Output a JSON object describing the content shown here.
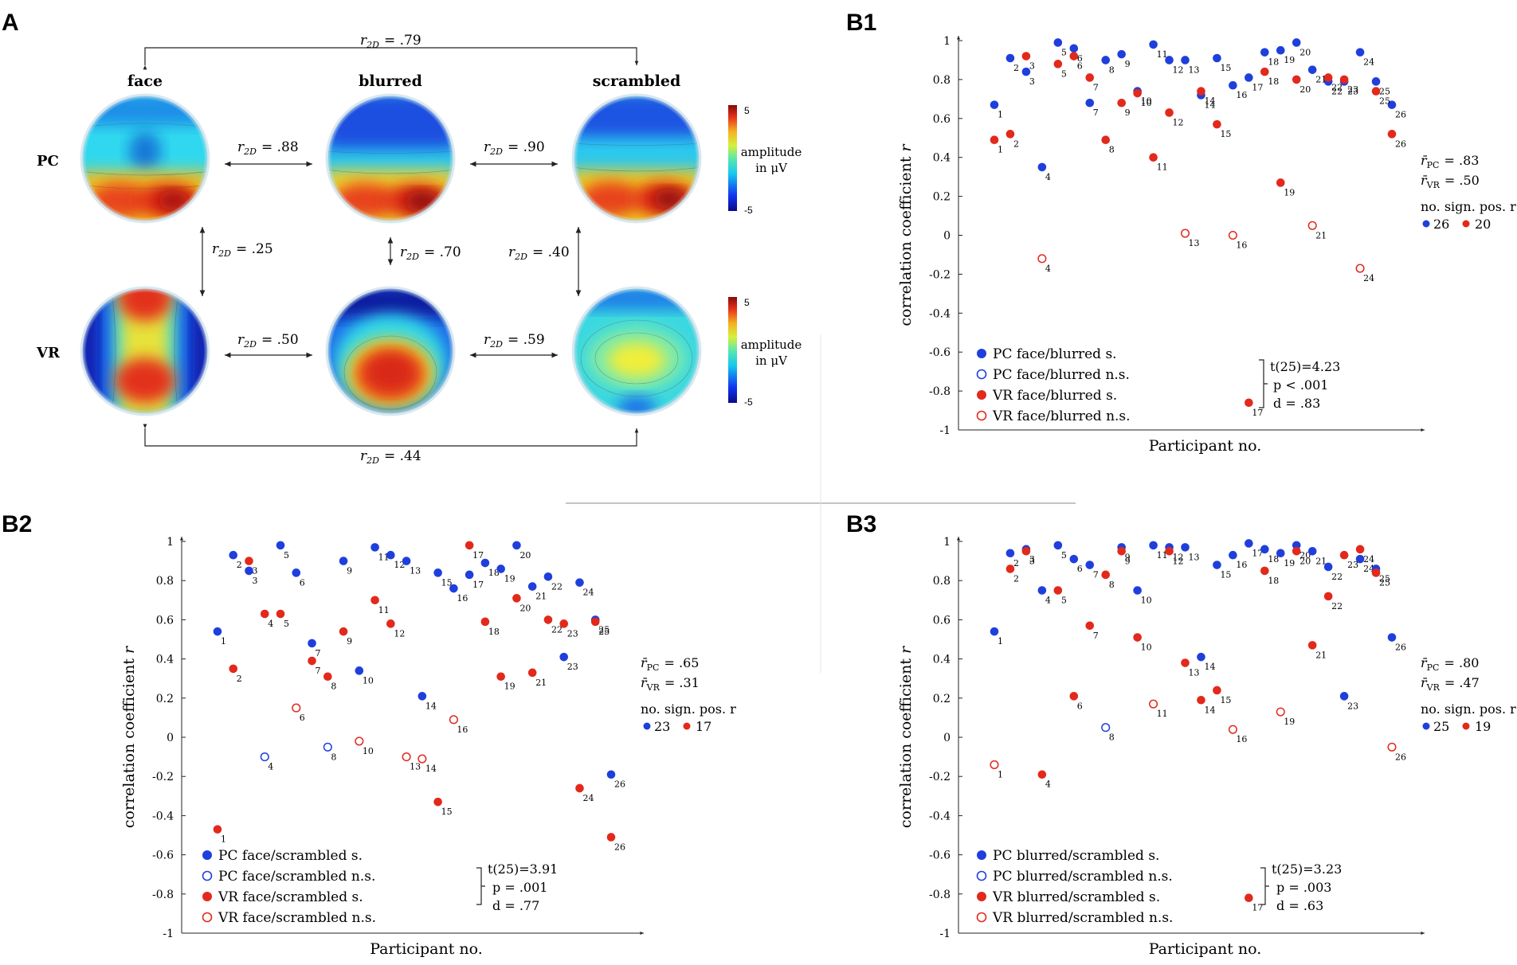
{
  "panels": {
    "a": {
      "label": "A",
      "col_labels": [
        "face",
        "blurred",
        "scrambled"
      ],
      "row_labels": [
        "PC",
        "VR"
      ],
      "r_symbol": "r",
      "r_sub": "2D",
      "correlations": {
        "pc_face_blurred": "= .88",
        "pc_blurred_scrambled": "= .90",
        "vr_face_blurred": "= .50",
        "vr_blurred_scrambled": "= .59",
        "face_pc_vr": "= .25",
        "blurred_pc_vr": "= .70",
        "scrambled_pc_vr": "= .40",
        "top_face_scrambled": "= .79",
        "bottom_face_scrambled": "= .44"
      },
      "colorbar": {
        "max": "5",
        "min": "-5",
        "label_line1": "amplitude",
        "label_line2": "in μV"
      }
    },
    "b1": {
      "label": "B1",
      "legend": [
        "PC face/blurred s.",
        "PC face/blurred n.s.",
        "VR face/blurred s.",
        "VR face/blurred n.s."
      ],
      "stats": {
        "t": "t(25)=4.23",
        "p": "p < .001",
        "d": "d = .83"
      },
      "summary": {
        "r_pc": "= .83",
        "r_vr": "= .50",
        "count_title": "no. sign. pos. r",
        "pc_count": "26",
        "vr_count": "20"
      }
    },
    "b2": {
      "label": "B2",
      "legend": [
        "PC face/scrambled s.",
        "PC face/scrambled n.s.",
        "VR face/scrambled s.",
        "VR face/scrambled n.s."
      ],
      "stats": {
        "t": "t(25)=3.91",
        "p": "p = .001",
        "d": "d = .77"
      },
      "summary": {
        "r_pc": "= .65",
        "r_vr": "= .31",
        "count_title": "no. sign. pos. r",
        "pc_count": "23",
        "vr_count": "17"
      }
    },
    "b3": {
      "label": "B3",
      "legend": [
        "PC blurred/scrambled s.",
        "PC blurred/scrambled n.s.",
        "VR blurred/scrambled s.",
        "VR blurred/scrambled n.s."
      ],
      "stats": {
        "t": "t(25)=3.23",
        "p": "p = .003",
        "d": "d = .63"
      },
      "summary": {
        "r_pc": "= .80",
        "r_vr": "= .47",
        "count_title": "no. sign. pos. r",
        "pc_count": "25",
        "vr_count": "19"
      }
    }
  },
  "colors": {
    "pc": "#1f3fdc",
    "vr": "#e2291b",
    "axis": "#222222"
  },
  "chart_data": [
    {
      "id": "b1",
      "type": "scatter",
      "title": "",
      "xlabel": "Participant no.",
      "ylabel": "correlation coefficient r",
      "ylim": [
        -1,
        1
      ],
      "yticks": [
        "-1",
        "-0.8",
        "-0.6",
        "-0.4",
        "-0.2",
        "0",
        "0.2",
        "0.4",
        "0.6",
        "0.8",
        "1"
      ],
      "x": [
        1,
        2,
        3,
        4,
        5,
        6,
        7,
        8,
        9,
        10,
        11,
        12,
        13,
        14,
        15,
        16,
        17,
        18,
        19,
        20,
        21,
        22,
        23,
        24,
        25,
        26
      ],
      "series": [
        {
          "name": "PC",
          "values": [
            0.67,
            0.91,
            0.84,
            0.35,
            0.99,
            0.96,
            0.68,
            0.9,
            0.93,
            0.74,
            0.98,
            0.9,
            0.9,
            0.72,
            0.91,
            0.77,
            0.81,
            0.94,
            0.95,
            0.99,
            0.85,
            0.79,
            0.79,
            0.94,
            0.79,
            0.67
          ],
          "significant": [
            true,
            true,
            true,
            true,
            true,
            true,
            true,
            true,
            true,
            true,
            true,
            true,
            true,
            true,
            true,
            true,
            true,
            true,
            true,
            true,
            true,
            true,
            true,
            true,
            true,
            true
          ]
        },
        {
          "name": "VR",
          "values": [
            0.49,
            0.52,
            0.92,
            -0.12,
            0.88,
            0.92,
            0.81,
            0.49,
            0.68,
            0.73,
            0.4,
            0.63,
            0.01,
            0.74,
            0.57,
            0.0,
            -0.86,
            0.84,
            0.27,
            0.8,
            0.05,
            0.81,
            0.8,
            -0.17,
            0.74,
            0.52
          ],
          "significant": [
            true,
            true,
            true,
            false,
            true,
            true,
            true,
            true,
            true,
            true,
            true,
            true,
            false,
            true,
            true,
            false,
            true,
            true,
            true,
            true,
            false,
            true,
            true,
            false,
            true,
            true
          ]
        }
      ]
    },
    {
      "id": "b2",
      "type": "scatter",
      "title": "",
      "xlabel": "Participant no.",
      "ylabel": "correlation coefficient r",
      "ylim": [
        -1,
        1
      ],
      "yticks": [
        "-1",
        "-0.8",
        "-0.6",
        "-0.4",
        "-0.2",
        "0",
        "0.2",
        "0.4",
        "0.6",
        "0.8",
        "1"
      ],
      "x": [
        1,
        2,
        3,
        4,
        5,
        6,
        7,
        8,
        9,
        10,
        11,
        12,
        13,
        14,
        15,
        16,
        17,
        18,
        19,
        20,
        21,
        22,
        23,
        24,
        25,
        26
      ],
      "series": [
        {
          "name": "PC",
          "values": [
            0.54,
            0.93,
            0.85,
            -0.1,
            0.98,
            0.84,
            0.48,
            -0.05,
            0.9,
            0.34,
            0.97,
            0.93,
            0.9,
            0.21,
            0.84,
            0.76,
            0.83,
            0.89,
            0.86,
            0.98,
            0.77,
            0.82,
            0.41,
            0.79,
            0.6,
            -0.19
          ],
          "significant": [
            true,
            true,
            true,
            false,
            true,
            true,
            true,
            false,
            true,
            true,
            true,
            true,
            true,
            true,
            true,
            true,
            true,
            true,
            true,
            true,
            true,
            true,
            true,
            true,
            true,
            true
          ]
        },
        {
          "name": "VR",
          "values": [
            -0.47,
            0.35,
            0.9,
            0.63,
            0.63,
            0.15,
            0.39,
            0.31,
            0.54,
            -0.02,
            0.7,
            0.58,
            -0.1,
            -0.11,
            -0.33,
            0.09,
            0.98,
            0.59,
            0.31,
            0.71,
            0.33,
            0.6,
            0.58,
            -0.26,
            0.59,
            -0.51
          ],
          "significant": [
            true,
            true,
            true,
            true,
            true,
            false,
            true,
            true,
            true,
            false,
            true,
            true,
            false,
            false,
            true,
            false,
            true,
            true,
            true,
            true,
            true,
            true,
            true,
            true,
            true,
            true
          ]
        }
      ]
    },
    {
      "id": "b3",
      "type": "scatter",
      "title": "",
      "xlabel": "Participant no.",
      "ylabel": "correlation coefficient r",
      "ylim": [
        -1,
        1
      ],
      "yticks": [
        "-1",
        "-0.8",
        "-0.6",
        "-0.4",
        "-0.2",
        "0",
        "0.2",
        "0.4",
        "0.6",
        "0.8",
        "1"
      ],
      "x": [
        1,
        2,
        3,
        4,
        5,
        6,
        7,
        8,
        9,
        10,
        11,
        12,
        13,
        14,
        15,
        16,
        17,
        18,
        19,
        20,
        21,
        22,
        23,
        24,
        25,
        26
      ],
      "series": [
        {
          "name": "PC",
          "values": [
            0.54,
            0.94,
            0.96,
            0.75,
            0.98,
            0.91,
            0.88,
            0.05,
            0.97,
            0.75,
            0.98,
            0.97,
            0.97,
            0.41,
            0.88,
            0.93,
            0.99,
            0.96,
            0.94,
            0.98,
            0.95,
            0.87,
            0.21,
            0.91,
            0.86,
            0.51
          ],
          "significant": [
            true,
            true,
            true,
            true,
            true,
            true,
            true,
            false,
            true,
            true,
            true,
            true,
            true,
            true,
            true,
            true,
            true,
            true,
            true,
            true,
            true,
            true,
            true,
            true,
            true,
            true
          ]
        },
        {
          "name": "VR",
          "values": [
            -0.14,
            0.86,
            0.95,
            -0.19,
            0.75,
            0.21,
            0.57,
            0.83,
            0.95,
            0.51,
            0.17,
            0.95,
            0.38,
            0.19,
            0.24,
            0.04,
            -0.82,
            0.85,
            0.13,
            0.95,
            0.47,
            0.72,
            0.93,
            0.96,
            0.84,
            -0.05
          ],
          "significant": [
            false,
            true,
            true,
            true,
            true,
            true,
            true,
            true,
            true,
            true,
            false,
            true,
            true,
            true,
            true,
            false,
            true,
            true,
            false,
            true,
            true,
            true,
            true,
            true,
            true,
            false
          ]
        }
      ]
    }
  ]
}
